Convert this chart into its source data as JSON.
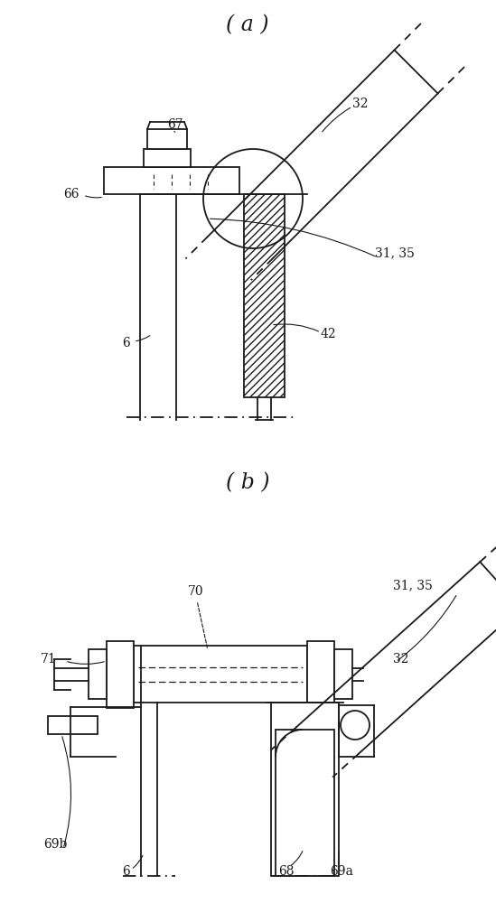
{
  "title_a": "( a )",
  "title_b": "( b )",
  "bg_color": "#ffffff",
  "line_color": "#1a1a1a",
  "lw": 1.3
}
